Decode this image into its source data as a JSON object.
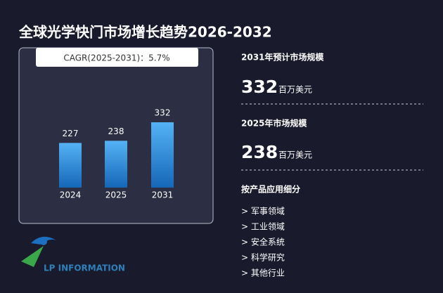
{
  "title": "全球光学快门市场增长趋势2026-2032",
  "chart_data": {
    "type": "bar",
    "annotation": "CAGR(2025-2031)：5.7%",
    "categories": [
      "2024",
      "2025",
      "2031"
    ],
    "values": [
      227,
      238,
      332
    ],
    "color": "#2f8fe0"
  },
  "summary": [
    {
      "label": "2031年预计市场规模",
      "unit": "百万美元"
    },
    {
      "label": "2025年市场规模",
      "unit": "百万美元"
    }
  ],
  "segments": {
    "title": "按产品应用细分",
    "items": [
      "> 军事领域",
      "> 工业领域",
      "> 安全系统",
      "> 科学研究",
      "> 其他行业"
    ]
  },
  "logo": "LP INFORMATION"
}
